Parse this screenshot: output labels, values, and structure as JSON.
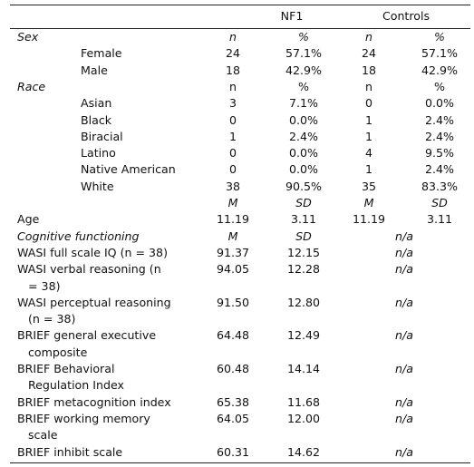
{
  "header": {
    "group1": "NF1",
    "group2": "Controls"
  },
  "rows": [
    {
      "kind": "section",
      "label": [
        "Sex"
      ],
      "c1": "n",
      "c2": "%",
      "c3": "n",
      "c4": "%",
      "italicLabel": true,
      "italicVals": true
    },
    {
      "kind": "sub",
      "label": [
        "Female"
      ],
      "c1": "24",
      "c2": "57.1%",
      "c3": "24",
      "c4": "57.1%"
    },
    {
      "kind": "sub",
      "label": [
        "Male"
      ],
      "c1": "18",
      "c2": "42.9%",
      "c3": "18",
      "c4": "42.9%"
    },
    {
      "kind": "section",
      "label": [
        "Race"
      ],
      "c1": "n",
      "c2": "%",
      "c3": "n",
      "c4": "%",
      "italicLabel": true,
      "italicVals": false
    },
    {
      "kind": "sub",
      "label": [
        "Asian"
      ],
      "c1": "3",
      "c2": "7.1%",
      "c3": "0",
      "c4": "0.0%"
    },
    {
      "kind": "sub",
      "label": [
        "Black"
      ],
      "c1": "0",
      "c2": "0.0%",
      "c3": "1",
      "c4": "2.4%"
    },
    {
      "kind": "sub",
      "label": [
        "Biracial"
      ],
      "c1": "1",
      "c2": "2.4%",
      "c3": "1",
      "c4": "2.4%"
    },
    {
      "kind": "sub",
      "label": [
        "Latino"
      ],
      "c1": "0",
      "c2": "0.0%",
      "c3": "4",
      "c4": "9.5%"
    },
    {
      "kind": "sub",
      "label": [
        "Native American"
      ],
      "c1": "0",
      "c2": "0.0%",
      "c3": "1",
      "c4": "2.4%"
    },
    {
      "kind": "sub",
      "label": [
        "White"
      ],
      "c1": "38",
      "c2": "90.5%",
      "c3": "35",
      "c4": "83.3%"
    },
    {
      "kind": "header",
      "label": [
        ""
      ],
      "c1": "M",
      "c2": "SD",
      "c3": "M",
      "c4": "SD",
      "italicVals": true
    },
    {
      "kind": "measure",
      "label": [
        "Age"
      ],
      "c1": "11.19",
      "c2": "3.11",
      "c3": "11.19",
      "c4": "3.11"
    },
    {
      "kind": "section",
      "label": [
        "Cognitive functioning"
      ],
      "c1": "M",
      "c2": "SD",
      "na": "n/a",
      "italicLabel": true,
      "italicVals": true
    },
    {
      "kind": "measure",
      "label": [
        "WASI full scale IQ (n = 38)"
      ],
      "c1": "91.37",
      "c2": "12.15",
      "na": "n/a"
    },
    {
      "kind": "measure",
      "label": [
        "WASI verbal reasoning (n",
        "= 38)"
      ],
      "c1": "94.05",
      "c2": "12.28",
      "na": "n/a"
    },
    {
      "kind": "measure",
      "label": [
        "WASI perceptual reasoning",
        "(n = 38)"
      ],
      "c1": "91.50",
      "c2": "12.80",
      "na": "n/a"
    },
    {
      "kind": "measure",
      "label": [
        "BRIEF general executive",
        "composite"
      ],
      "c1": "64.48",
      "c2": "12.49",
      "na": "n/a"
    },
    {
      "kind": "measure",
      "label": [
        "BRIEF Behavioral",
        "Regulation Index"
      ],
      "c1": "60.48",
      "c2": "14.14",
      "na": "n/a"
    },
    {
      "kind": "measure",
      "label": [
        "BRIEF metacognition index"
      ],
      "c1": "65.38",
      "c2": "11.68",
      "na": "n/a"
    },
    {
      "kind": "measure",
      "label": [
        "BRIEF working memory",
        "scale"
      ],
      "c1": "64.05",
      "c2": "12.00",
      "na": "n/a"
    },
    {
      "kind": "measure",
      "label": [
        "BRIEF inhibit scale"
      ],
      "c1": "60.31",
      "c2": "14.62",
      "na": "n/a"
    }
  ]
}
